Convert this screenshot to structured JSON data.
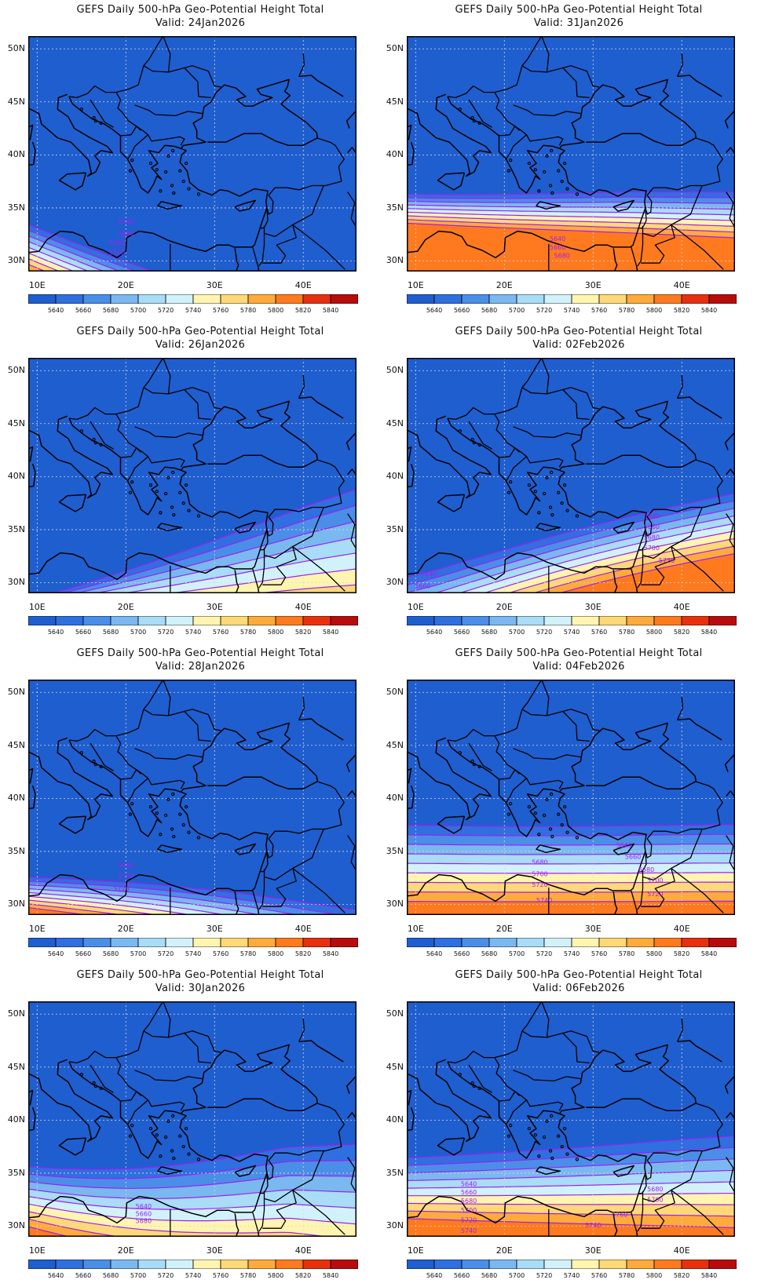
{
  "product_title": "GEFS Daily 500-hPa Geo-Potential Height Total",
  "valid_prefix": "Valid: ",
  "lat_labels": [
    "50N",
    "45N",
    "40N",
    "35N",
    "30N"
  ],
  "lat_values": [
    50,
    45,
    40,
    35,
    30
  ],
  "lon_labels": [
    "10E",
    "20E",
    "30E",
    "40E"
  ],
  "lon_values": [
    10,
    20,
    30,
    40
  ],
  "map_extent": {
    "lon_min": 9,
    "lon_max": 46,
    "lat_min": 29,
    "lat_max": 51.2
  },
  "colorbar": {
    "labels": [
      "5640",
      "5660",
      "5680",
      "5700",
      "5720",
      "5740",
      "5760",
      "5780",
      "5800",
      "5820",
      "5840"
    ],
    "colors": [
      "#1f5ecf",
      "#2f6fe0",
      "#4a8ee8",
      "#7ab8f0",
      "#a8dcf7",
      "#d2f2fb",
      "#fff5b0",
      "#ffd878",
      "#ffab3c",
      "#ff7a1e",
      "#e8300e",
      "#b80c0c"
    ]
  },
  "contour_color": "#a020f0",
  "land_fill_color": "#1f5ecf",
  "panels": [
    {
      "valid": "24Jan2026",
      "left": [
        1,
        0,
        3,
        0
      ],
      "right": [
        1,
        -10,
        4,
        -1
      ],
      "bulge": [
        2,
        -1,
        6,
        7
      ],
      "labels": [
        {
          "text": "5640",
          "lon": 20,
          "lat": 33.7
        },
        {
          "text": "5660",
          "lon": 20,
          "lat": 32.6
        },
        {
          "text": "5680",
          "lon": 19,
          "lat": 31.7
        },
        {
          "text": "5700",
          "lon": 19,
          "lat": 30.8
        }
      ]
    },
    {
      "valid": "26Jan2026",
      "left": [
        -4,
        0,
        1,
        0
      ],
      "right": [
        38.8,
        3,
        6,
        8
      ],
      "bulge": [
        0,
        0,
        9,
        6
      ],
      "labels": []
    },
    {
      "valid": "28Jan2026",
      "left": [
        0,
        0,
        2,
        0
      ],
      "right": [
        1,
        -4,
        4,
        0
      ],
      "bulge": [
        2,
        2,
        5,
        7
      ],
      "labels": [
        {
          "text": "5680",
          "lon": 20,
          "lat": 33.7
        },
        {
          "text": "5700",
          "lon": 20,
          "lat": 32.7
        },
        {
          "text": "5720",
          "lon": 19.5,
          "lat": 31.5
        }
      ]
    },
    {
      "valid": "30Jan2026",
      "left": [
        4,
        0,
        4,
        0
      ],
      "right": [
        37.7,
        6,
        6,
        3
      ],
      "bulge": [
        -1,
        -3,
        5,
        3
      ],
      "labels": [
        {
          "text": "5640",
          "lon": 22,
          "lat": 31.9
        },
        {
          "text": "5660",
          "lon": 22,
          "lat": 31.2
        },
        {
          "text": "5680",
          "lon": 22,
          "lat": 30.5
        }
      ]
    },
    {
      "valid": "31Jan2026",
      "left": [
        4,
        0,
        2,
        0
      ],
      "right": [
        4,
        0,
        3,
        8
      ],
      "bulge": [
        -3,
        0,
        5,
        5
      ],
      "labels": [
        {
          "text": "5640",
          "lon": 26,
          "lat": 32.1
        },
        {
          "text": "5660",
          "lon": 26,
          "lat": 31.3
        },
        {
          "text": "5680",
          "lon": 26.5,
          "lat": 30.5
        }
      ]
    },
    {
      "valid": "02Feb2026",
      "left": [
        -2,
        0,
        4,
        0
      ],
      "right": [
        3.8,
        2,
        4,
        11
      ],
      "bulge": [
        4,
        2,
        7,
        6
      ],
      "labels": [
        {
          "text": "5640",
          "lon": 11.5,
          "lat": 30.8
        },
        {
          "text": "5660",
          "lon": 10.8,
          "lat": 29.7
        },
        {
          "text": "5640",
          "lon": 36.6,
          "lat": 36.3
        },
        {
          "text": "5660",
          "lon": 36.6,
          "lat": 35.3
        },
        {
          "text": "5680",
          "lon": 36.6,
          "lat": 34.3
        },
        {
          "text": "5700",
          "lon": 36.6,
          "lat": 33.3
        },
        {
          "text": "5720",
          "lon": 38.3,
          "lat": 32.1
        }
      ]
    },
    {
      "valid": "04Feb2026",
      "left": [
        5,
        0,
        5,
        0
      ],
      "right": [
        5,
        0,
        5,
        0
      ],
      "bulge": [
        1,
        0,
        3,
        1
      ],
      "labels": [
        {
          "text": "5640",
          "lon": 33.5,
          "lat": 35.6
        },
        {
          "text": "5660",
          "lon": 34.5,
          "lat": 34.5
        },
        {
          "text": "5680",
          "lon": 24,
          "lat": 34.0
        },
        {
          "text": "5680",
          "lon": 36,
          "lat": 33.3
        },
        {
          "text": "5700",
          "lon": 24,
          "lat": 32.9
        },
        {
          "text": "5700",
          "lon": 37,
          "lat": 32.3
        },
        {
          "text": "5720",
          "lon": 24,
          "lat": 31.9
        },
        {
          "text": "5720",
          "lon": 37,
          "lat": 31.0
        },
        {
          "text": "5740",
          "lon": 24.5,
          "lat": 30.4
        }
      ]
    },
    {
      "valid": "06Feb2026",
      "left": [
        4,
        0,
        4,
        0
      ],
      "right": [
        6,
        0,
        6,
        0
      ],
      "bulge": [
        0,
        0,
        3,
        1
      ],
      "labels": [
        {
          "text": "5640",
          "lon": 16,
          "lat": 34.0
        },
        {
          "text": "5660",
          "lon": 16,
          "lat": 33.2
        },
        {
          "text": "5680",
          "lon": 16,
          "lat": 32.4
        },
        {
          "text": "5700",
          "lon": 16,
          "lat": 31.5
        },
        {
          "text": "5720",
          "lon": 16,
          "lat": 30.6
        },
        {
          "text": "5740",
          "lon": 16,
          "lat": 29.6
        },
        {
          "text": "5680",
          "lon": 37,
          "lat": 33.5
        },
        {
          "text": "5700",
          "lon": 37,
          "lat": 32.5
        },
        {
          "text": "5740",
          "lon": 30,
          "lat": 30.1
        },
        {
          "text": "5760",
          "lon": 33,
          "lat": 31.1
        }
      ]
    }
  ]
}
